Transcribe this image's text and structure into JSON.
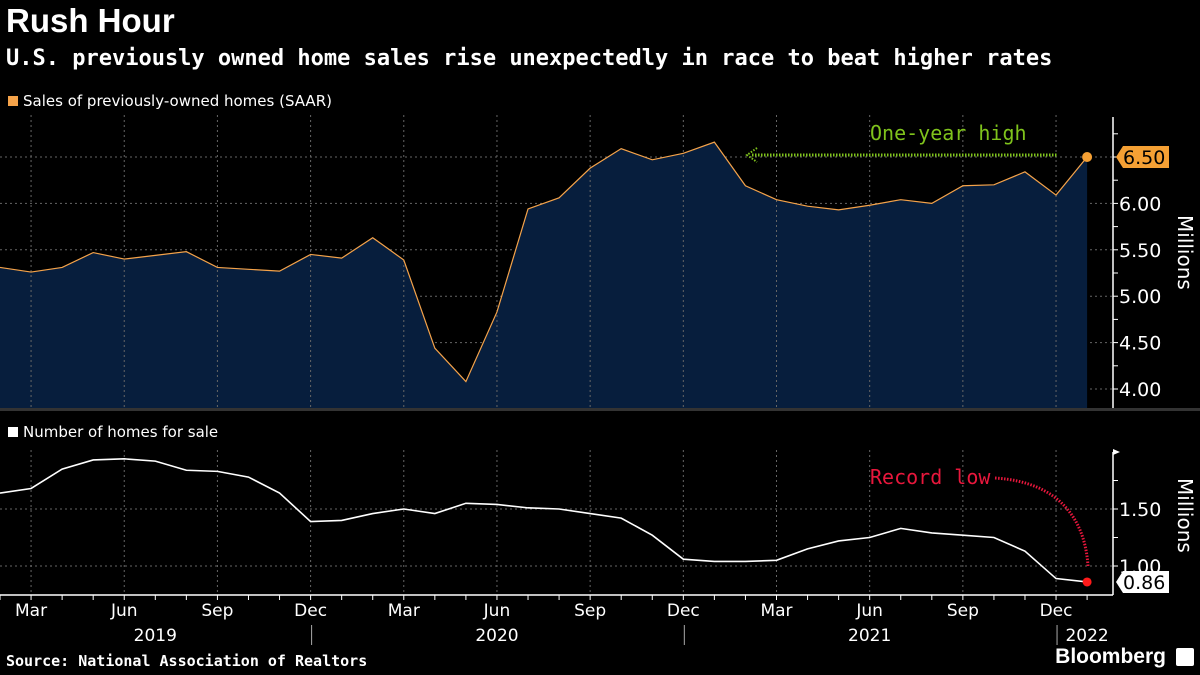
{
  "header": {
    "title": "Rush Hour",
    "subtitle": "U.S. previously owned home sales rise unexpectedly in race to beat higher rates"
  },
  "footer": {
    "source": "Source: National Association of Realtors",
    "logo": "Bloomberg"
  },
  "colors": {
    "background": "#000000",
    "sales_line": "#f5a34a",
    "sales_fill": "#071e3d",
    "inventory_line": "#ffffff",
    "annotation_high": "#7fc31c",
    "annotation_low": "#e8173c"
  },
  "chart_data": [
    {
      "type": "area",
      "legend": "Sales of previously-owned homes (SAAR)",
      "ylabel": "Millions",
      "ylim": [
        3.85,
        6.85
      ],
      "yticks": [
        "4.00",
        "4.50",
        "5.00",
        "5.50",
        "6.00",
        "6.50"
      ],
      "grid": true,
      "x": [
        "2019-02",
        "2019-03",
        "2019-04",
        "2019-05",
        "2019-06",
        "2019-07",
        "2019-08",
        "2019-09",
        "2019-10",
        "2019-11",
        "2019-12",
        "2020-01",
        "2020-02",
        "2020-03",
        "2020-04",
        "2020-05",
        "2020-06",
        "2020-07",
        "2020-08",
        "2020-09",
        "2020-10",
        "2020-11",
        "2020-12",
        "2021-01",
        "2021-02",
        "2021-03",
        "2021-04",
        "2021-05",
        "2021-06",
        "2021-07",
        "2021-08",
        "2021-09",
        "2021-10",
        "2021-11",
        "2021-12",
        "2022-01"
      ],
      "values": [
        5.31,
        5.26,
        5.31,
        5.47,
        5.4,
        5.44,
        5.48,
        5.31,
        5.29,
        5.27,
        5.45,
        5.41,
        5.63,
        5.39,
        4.44,
        4.08,
        4.83,
        5.94,
        6.06,
        6.38,
        6.59,
        6.47,
        6.54,
        6.66,
        6.19,
        6.04,
        5.97,
        5.93,
        5.98,
        6.04,
        6.0,
        6.19,
        6.2,
        6.34,
        6.09,
        6.5
      ],
      "last_value_label": "6.50",
      "annotation": "One-year high"
    },
    {
      "type": "line",
      "legend": "Number of homes for sale",
      "ylabel": "Millions",
      "ylim": [
        0.75,
        2.05
      ],
      "yticks": [
        "1.00",
        "1.50"
      ],
      "grid": true,
      "values": [
        1.64,
        1.68,
        1.85,
        1.93,
        1.94,
        1.92,
        1.84,
        1.83,
        1.78,
        1.64,
        1.39,
        1.4,
        1.46,
        1.5,
        1.46,
        1.55,
        1.54,
        1.51,
        1.5,
        1.46,
        1.42,
        1.27,
        1.06,
        1.04,
        1.04,
        1.05,
        1.15,
        1.22,
        1.25,
        1.33,
        1.29,
        1.27,
        1.25,
        1.13,
        0.89,
        0.86
      ],
      "last_value_label": "0.86",
      "annotation": "Record low"
    }
  ],
  "x_axis": {
    "month_labels": [
      {
        "label": "Mar",
        "index": 1
      },
      {
        "label": "Jun",
        "index": 4
      },
      {
        "label": "Sep",
        "index": 7
      },
      {
        "label": "Dec",
        "index": 10
      },
      {
        "label": "Mar",
        "index": 13
      },
      {
        "label": "Jun",
        "index": 16
      },
      {
        "label": "Sep",
        "index": 19
      },
      {
        "label": "Dec",
        "index": 22
      },
      {
        "label": "Mar",
        "index": 25
      },
      {
        "label": "Jun",
        "index": 28
      },
      {
        "label": "Sep",
        "index": 31
      },
      {
        "label": "Dec",
        "index": 34
      }
    ],
    "year_labels": [
      {
        "label": "2019",
        "index": 5
      },
      {
        "label": "2020",
        "index": 16
      },
      {
        "label": "2021",
        "index": 28
      },
      {
        "label": "2022",
        "index": 35
      }
    ]
  }
}
